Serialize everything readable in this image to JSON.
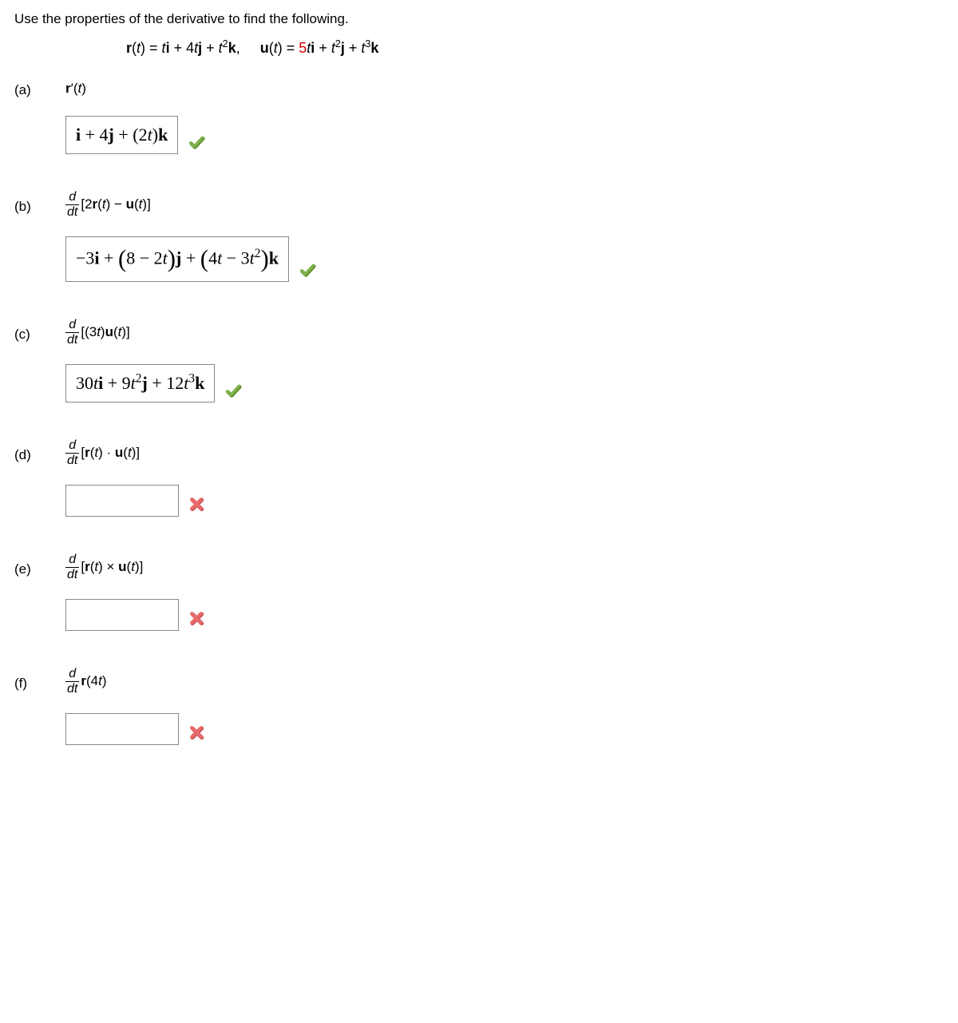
{
  "instruction": "Use the properties of the derivative to find the following.",
  "given": {
    "coeff_uk": "5",
    "r_expr_html": "<span class='b'>r</span>(<span class='it'>t</span>) = <span class='it'>t</span><span class='b'>i</span> + 4<span class='it'>t</span><span class='b'>j</span> + <span class='it'>t</span><sup>2</sup><span class='b'>k</span>,",
    "u_expr_html": "<span class='b'>u</span>(<span class='it'>t</span>) = <span class='red'>5</span><span class='it'>t</span><span class='b'>i</span> + <span class='it'>t</span><sup>2</sup><span class='b'>j</span> + <span class='it'>t</span><sup>3</sup><span class='b'>k</span>"
  },
  "parts": {
    "a": {
      "label": "(a)",
      "prompt_html": "<span class='b'>r</span>′(<span class='it'>t</span>)",
      "answer_html": "<span class='b'>i</span> + 4<span class='b'>j</span> + (2<span class='it'>t</span>)<span class='b'>k</span>",
      "status": "correct"
    },
    "b": {
      "label": "(b)",
      "prompt_html": "<span class='frac'><span class='num'>d</span><span class='den'>dt</span></span>[2<span class='b'>r</span>(<span class='it'>t</span>) − <span class='b'>u</span>(<span class='it'>t</span>)]",
      "answer_html": "−3<span class='b'>i</span> + <span class='paren-big'>(</span>8 − 2<span class='it'>t</span><span class='paren-big'>)</span><span class='b'>j</span> + <span class='paren-big'>(</span>4<span class='it'>t</span> − 3<span class='it'>t</span><sup>2</sup><span class='paren-big'>)</span><span class='b'>k</span>",
      "status": "correct"
    },
    "c": {
      "label": "(c)",
      "prompt_html": "<span class='frac'><span class='num'>d</span><span class='den'>dt</span></span>[(3<span class='it'>t</span>)<span class='b'>u</span>(<span class='it'>t</span>)]",
      "answer_html": "30<span class='it'>t</span><span class='b'>i</span> + 9<span class='it'>t</span><sup>2</sup><span class='b'>j</span> + 12<span class='it'>t</span><sup>3</sup><span class='b'>k</span>",
      "status": "correct"
    },
    "d": {
      "label": "(d)",
      "prompt_html": "<span class='frac'><span class='num'>d</span><span class='den'>dt</span></span>[<span class='b'>r</span>(<span class='it'>t</span>) · <span class='b'>u</span>(<span class='it'>t</span>)]",
      "answer_html": "",
      "status": "incorrect"
    },
    "e": {
      "label": "(e)",
      "prompt_html": "<span class='frac'><span class='num'>d</span><span class='den'>dt</span></span>[<span class='b'>r</span>(<span class='it'>t</span>) × <span class='b'>u</span>(<span class='it'>t</span>)]",
      "answer_html": "",
      "status": "incorrect"
    },
    "f": {
      "label": "(f)",
      "prompt_html": "<span class='frac'><span class='num'>d</span><span class='den'>dt</span></span><span class='b'>r</span>(4<span class='it'>t</span>)",
      "answer_html": "",
      "status": "incorrect"
    }
  },
  "colors": {
    "check_stroke": "#7fb24a",
    "check_shadow": "#5a8a2e",
    "x_fill": "#e86a6a",
    "x_shadow": "#c94f4f"
  }
}
